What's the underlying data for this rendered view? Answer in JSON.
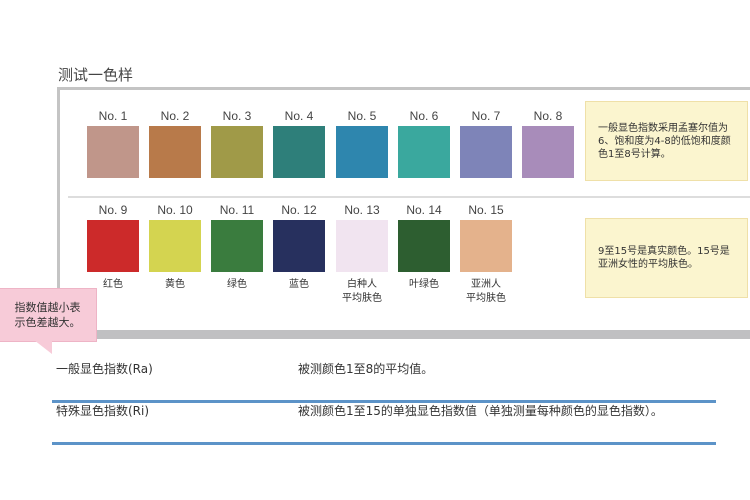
{
  "title": "测试一色样",
  "samples_row1": [
    {
      "label": "No. 1",
      "color": "#c0968a"
    },
    {
      "label": "No. 2",
      "color": "#b87a4a"
    },
    {
      "label": "No. 3",
      "color": "#a09a48"
    },
    {
      "label": "No. 4",
      "color": "#2e7f7a"
    },
    {
      "label": "No. 5",
      "color": "#2e86ae"
    },
    {
      "label": "No. 6",
      "color": "#3aa89e"
    },
    {
      "label": "No. 7",
      "color": "#7e84b8"
    },
    {
      "label": "No. 8",
      "color": "#a88cba"
    }
  ],
  "samples_row2": [
    {
      "label": "No. 9",
      "color": "#cc2a2a",
      "name": "红色"
    },
    {
      "label": "No. 10",
      "color": "#d4d450",
      "name": "黄色"
    },
    {
      "label": "No. 11",
      "color": "#3a7c3e",
      "name": "绿色"
    },
    {
      "label": "No. 12",
      "color": "#27305e",
      "name": "蓝色"
    },
    {
      "label": "No. 13",
      "color": "#f1e4f0",
      "name": "白种人\n平均肤色"
    },
    {
      "label": "No. 14",
      "color": "#2d5e30",
      "name": "叶绿色"
    },
    {
      "label": "No. 15",
      "color": "#e4b28c",
      "name": "亚洲人\n平均肤色"
    }
  ],
  "note1": "一般显色指数采用孟塞尔值为6、饱和度为4-8的低饱和度颜色1至8号计算。",
  "note2": "9至15号是真实颜色。15号是亚洲女性的平均肤色。",
  "callout": "指数值越小表示色差越大。",
  "definitions": [
    {
      "term": "一般显色指数(Ra)",
      "desc": "被测颜色1至8的平均值。"
    },
    {
      "term": "特殊显色指数(Ri)",
      "desc": "被测颜色1至15的单独显色指数值（单独测量每种颜色的显色指数）。"
    }
  ]
}
